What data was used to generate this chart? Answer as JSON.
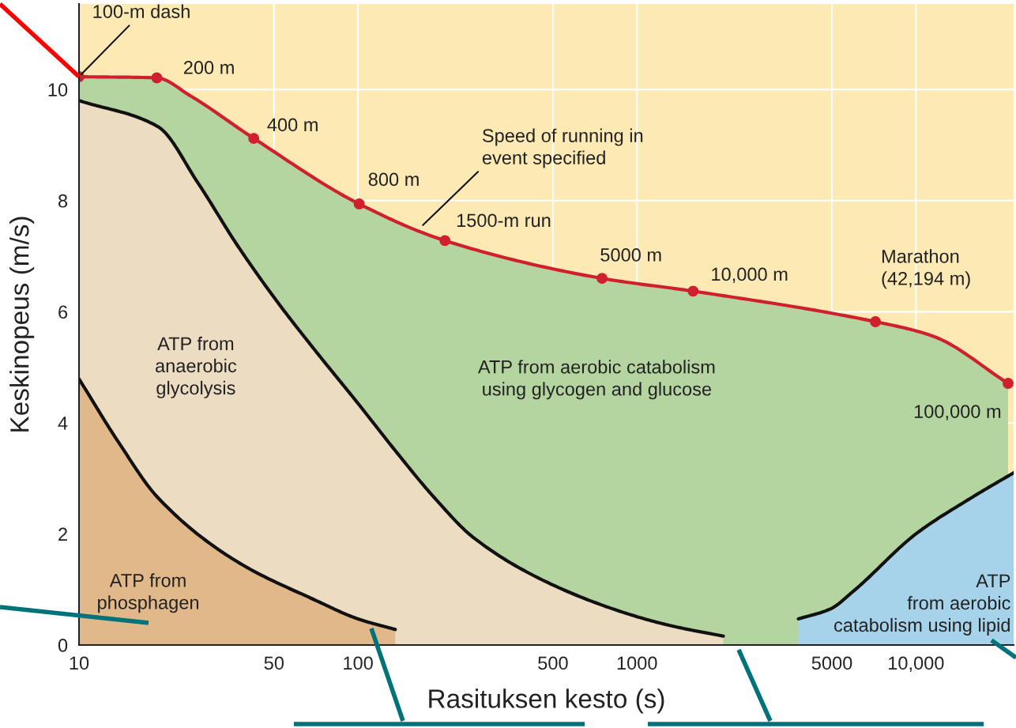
{
  "chart_data": {
    "type": "area",
    "xlabel": "Rasituksen kesto (s)",
    "ylabel": "Keskinopeus (m/s)",
    "log": "x",
    "grid": true,
    "xlim": [
      10,
      22400
    ],
    "ylim": [
      0,
      11.54
    ],
    "xticks": [
      10,
      50,
      100,
      500,
      1000,
      5000,
      {
        "value": 10000,
        "label": "10,000"
      }
    ],
    "yticks": [
      0,
      2,
      4,
      6,
      8,
      10
    ],
    "series": [
      {
        "color": "#b5d5a0",
        "x": [
          10,
          19,
          25,
          42.3,
          101,
          205,
          750,
          1589,
          7160,
          11500,
          21400
        ],
        "values": [
          10.23,
          10.21,
          9.89,
          9.12,
          7.94,
          7.28,
          6.6,
          6.37,
          5.82,
          5.56,
          4.71
        ]
      },
      {
        "color": "#ecdcc2",
        "x": [
          10,
          19.2,
          26.6,
          36.9,
          51,
          70.8,
          100,
          136,
          188,
          260,
          500,
          1000,
          1370,
          2040
        ],
        "values": [
          9.8,
          9.33,
          8.33,
          7.2,
          6.2,
          5.28,
          4.35,
          3.5,
          2.65,
          1.93,
          1.08,
          0.51,
          0.33,
          0.16
        ]
      },
      {
        "color": "#e0b889",
        "x": [
          10,
          13.9,
          19.2,
          36.9,
          70.8,
          100,
          136
        ],
        "values": [
          4.79,
          3.64,
          2.65,
          1.5,
          0.8,
          0.47,
          0.28
        ]
      },
      {
        "color": "#a6d3ea",
        "x": [
          3790,
          4940,
          5970,
          10000,
          15800,
          22400
        ],
        "values": [
          0.47,
          0.65,
          0.97,
          2.0,
          2.65,
          3.1
        ]
      },
      {
        "type": "line",
        "color": "#d0202e",
        "marker": "none",
        "x": [
          10,
          19,
          25,
          42.3,
          101,
          205,
          750,
          1589,
          7160,
          11500,
          21400
        ],
        "values": [
          10.23,
          10.21,
          9.89,
          9.12,
          7.94,
          7.28,
          6.6,
          6.37,
          5.82,
          5.56,
          4.71
        ]
      },
      {
        "type": "scatter",
        "color": "#d0202e",
        "marker": "circle",
        "x": [
          10,
          19,
          42.3,
          101,
          205,
          750,
          1589,
          7160,
          21400
        ],
        "values": [
          10.23,
          10.21,
          9.12,
          7.94,
          7.28,
          6.6,
          6.37,
          5.82,
          4.71
        ]
      }
    ],
    "annotations": [
      {
        "text": "100-m dash",
        "x": 10,
        "y": 10.23
      },
      {
        "text": "200 m",
        "x": 19,
        "y": 10.21
      },
      {
        "text": "400 m",
        "x": 42.3,
        "y": 9.12
      },
      {
        "text": "800 m",
        "x": 101,
        "y": 7.94
      },
      {
        "text": "1500-m run",
        "x": 205,
        "y": 7.28
      },
      {
        "text": "5000 m",
        "x": 750,
        "y": 6.6
      },
      {
        "text": "10,000 m",
        "x": 1589,
        "y": 6.37
      },
      {
        "text": "Marathon\n(42,194 m)",
        "x": 7160,
        "y": 5.82
      },
      {
        "text": "100,000 m",
        "x": 21400,
        "y": 4.71
      },
      "Speed of running in\nevent specified",
      "ATP from\nanaerobic\nglycolysis",
      "ATP from aerobic catabolism\nusing glycogen and glucose",
      "ATP from\nphosphagen",
      "ATP\nfrom aerobic\ncatabolism using lipid"
    ]
  }
}
